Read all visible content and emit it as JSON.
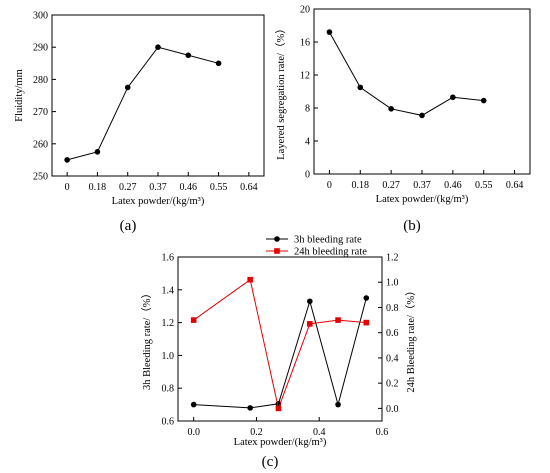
{
  "panels": {
    "a": "(a)",
    "b": "(b)",
    "c": "(c)"
  },
  "chart_data": [
    {
      "id": "a",
      "type": "line",
      "xlabel": "Latex powder/(kg/m³)",
      "ylabel": "Fluidity/mm",
      "xticks": [
        "0",
        "0.18",
        "0.27",
        "0.37",
        "0.46",
        "0.55",
        "0.64"
      ],
      "yticks": [
        "250",
        "260",
        "270",
        "280",
        "290",
        "300"
      ],
      "ylim": [
        250,
        300
      ],
      "series": [
        {
          "marker": "circle",
          "color": "#000000",
          "x": [
            0,
            0.18,
            0.27,
            0.37,
            0.46,
            0.55
          ],
          "values": [
            255,
            257.5,
            277.5,
            290,
            287.5,
            285
          ]
        }
      ]
    },
    {
      "id": "b",
      "type": "line",
      "xlabel": "Latex powder/(kg/m³)",
      "ylabel": "Layered segregation rate/（%）",
      "xticks": [
        "0",
        "0.18",
        "0.27",
        "0.37",
        "0.46",
        "0.55",
        "0.64"
      ],
      "yticks": [
        "0",
        "4",
        "8",
        "12",
        "16",
        "20"
      ],
      "ylim": [
        0,
        20
      ],
      "series": [
        {
          "marker": "circle",
          "color": "#000000",
          "x": [
            0,
            0.18,
            0.27,
            0.37,
            0.46,
            0.55
          ],
          "values": [
            17.2,
            10.5,
            7.9,
            7.1,
            9.3,
            8.9
          ]
        }
      ]
    },
    {
      "id": "c",
      "type": "line",
      "xlabel": "Latex powder/(kg/m³)",
      "ylabel": "3h Bleeding rate/（%）",
      "ylabel_right": "24h Bleeding rate/（%）",
      "xticks": [
        "0.0",
        "0.2",
        "0.4",
        "0.6"
      ],
      "yticks": [
        "0.6",
        "0.8",
        "1.0",
        "1.2",
        "1.4",
        "1.6"
      ],
      "yticks_right": [
        "0.0",
        "0.2",
        "0.4",
        "0.6",
        "0.8",
        "1.0",
        "1.2"
      ],
      "xlim": [
        -0.05,
        0.6
      ],
      "ylim": [
        0.6,
        1.6
      ],
      "ylim_right": [
        -0.1,
        1.2
      ],
      "legend_position": "top",
      "series": [
        {
          "name": "3h bleeding rate",
          "axis": "left",
          "marker": "circle",
          "color": "#000000",
          "x": [
            0,
            0.18,
            0.27,
            0.37,
            0.46,
            0.55
          ],
          "values": [
            0.7,
            0.68,
            0.705,
            1.33,
            0.7,
            1.35
          ]
        },
        {
          "name": "24h bleeding rate",
          "axis": "right",
          "marker": "square",
          "color": "#e60000",
          "x": [
            0,
            0.18,
            0.27,
            0.37,
            0.46,
            0.55
          ],
          "values": [
            0.7,
            1.02,
            0.0,
            0.67,
            0.7,
            0.68
          ]
        }
      ]
    }
  ]
}
